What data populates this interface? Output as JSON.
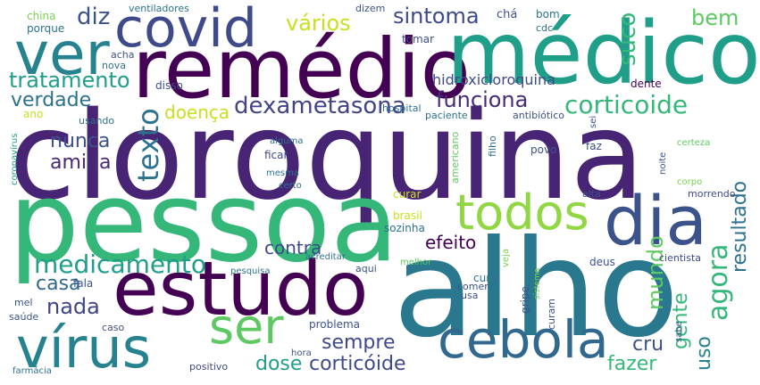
{
  "palette": {
    "dark_purple": "#440154",
    "indigo": "#3b528b",
    "blue": "#31688e",
    "teal": "#21918c",
    "green": "#35b779",
    "light_green": "#90d743",
    "yellow": "#c8e020",
    "background": "#ffffff"
  },
  "words": [
    {
      "text": "cloroquina",
      "color": "#482475"
    },
    {
      "text": "pessoa",
      "color": "#35b779"
    },
    {
      "text": "alho",
      "color": "#2a788e"
    },
    {
      "text": "remédio",
      "color": "#440154"
    },
    {
      "text": "médico",
      "color": "#1f9e89"
    },
    {
      "text": "ver",
      "color": "#26828e"
    },
    {
      "text": "covid",
      "color": "#3e4a89"
    },
    {
      "text": "estudo",
      "color": "#440154"
    },
    {
      "text": "dia",
      "color": "#3b528b"
    },
    {
      "text": "todos",
      "color": "#90d743"
    },
    {
      "text": "ser",
      "color": "#5ec962"
    },
    {
      "text": "vírus",
      "color": "#26828e"
    },
    {
      "text": "cebola",
      "color": "#31688e"
    },
    {
      "text": "medicamento",
      "color": "#1f9e89"
    },
    {
      "text": "dexametasona",
      "color": "#414487"
    },
    {
      "text": "corticoide",
      "color": "#35b779"
    },
    {
      "text": "funciona",
      "color": "#472c7a"
    },
    {
      "text": "sintoma",
      "color": "#3e4a89"
    },
    {
      "text": "tratamento",
      "color": "#1f9e89"
    },
    {
      "text": "texto",
      "color": "#2c728e"
    },
    {
      "text": "doença",
      "color": "#c8e020"
    },
    {
      "text": "nunca",
      "color": "#3b528b"
    },
    {
      "text": "amiga",
      "color": "#482878"
    },
    {
      "text": "verdade",
      "color": "#2c728e"
    },
    {
      "text": "diz",
      "color": "#3b528b"
    },
    {
      "text": "vários",
      "color": "#c8e020"
    },
    {
      "text": "suco",
      "color": "#35b779"
    },
    {
      "text": "bem",
      "color": "#5ec962"
    },
    {
      "text": "hidroxicloroquina",
      "color": "#3e4a89"
    },
    {
      "text": "nada",
      "color": "#414487"
    },
    {
      "text": "casa",
      "color": "#31688e"
    },
    {
      "text": "contra",
      "color": "#3e4a89"
    },
    {
      "text": "efeito",
      "color": "#440154"
    },
    {
      "text": "agora",
      "color": "#35b779"
    },
    {
      "text": "mundo",
      "color": "#5ec962"
    },
    {
      "text": "resultado",
      "color": "#2c728e"
    },
    {
      "text": "sempre",
      "color": "#3e4a89"
    },
    {
      "text": "dose",
      "color": "#1f9e89"
    },
    {
      "text": "corticóide",
      "color": "#3e4a89"
    },
    {
      "text": "fazer",
      "color": "#35b779"
    },
    {
      "text": "cru",
      "color": "#3b528b"
    },
    {
      "text": "gente",
      "color": "#35b779"
    },
    {
      "text": "uso",
      "color": "#26828e"
    },
    {
      "text": "china",
      "color": "#7ad151"
    },
    {
      "text": "porque",
      "color": "#2c728e"
    },
    {
      "text": "ventiladores",
      "color": "#2c728e"
    },
    {
      "text": "dizem",
      "color": "#3b528b"
    },
    {
      "text": "chá",
      "color": "#3b528b"
    },
    {
      "text": "bom",
      "color": "#2c728e"
    },
    {
      "text": "cdc",
      "color": "#2c728e"
    },
    {
      "text": "tomar",
      "color": "#3e4a89"
    },
    {
      "text": "acha",
      "color": "#3b528b"
    },
    {
      "text": "nova",
      "color": "#2c728e"
    },
    {
      "text": "disso",
      "color": "#3b528b"
    },
    {
      "text": "hospital",
      "color": "#2c728e"
    },
    {
      "text": "dente",
      "color": "#440154"
    },
    {
      "text": "paciente",
      "color": "#2c728e"
    },
    {
      "text": "antibiótico",
      "color": "#3b528b"
    },
    {
      "text": "ano",
      "color": "#c8e020"
    },
    {
      "text": "usando",
      "color": "#2c728e"
    },
    {
      "text": "coronavírus",
      "color": "#1f9e89"
    },
    {
      "text": "alguma",
      "color": "#2c728e"
    },
    {
      "text": "americano",
      "color": "#5ec962"
    },
    {
      "text": "filho",
      "color": "#2c728e"
    },
    {
      "text": "sei",
      "color": "#3b528b"
    },
    {
      "text": "povo",
      "color": "#3b528b"
    },
    {
      "text": "faz",
      "color": "#3e4a89"
    },
    {
      "text": "noite",
      "color": "#3b528b"
    },
    {
      "text": "certeza",
      "color": "#5ec962"
    },
    {
      "text": "corpo",
      "color": "#7ad151"
    },
    {
      "text": "ficar",
      "color": "#3e4a89"
    },
    {
      "text": "mesma",
      "color": "#2c728e"
    },
    {
      "text": "certo",
      "color": "#2c728e"
    },
    {
      "text": "curar",
      "color": "#c8e020"
    },
    {
      "text": "alta",
      "color": "#3b528b"
    },
    {
      "text": "morrendo",
      "color": "#3e4a89"
    },
    {
      "text": "brasil",
      "color": "#c8e020"
    },
    {
      "text": "sozinha",
      "color": "#2c728e"
    },
    {
      "text": "acreditar",
      "color": "#2c728e"
    },
    {
      "text": "aqui",
      "color": "#3b528b"
    },
    {
      "text": "melhor",
      "color": "#5ec962"
    },
    {
      "text": "pesquisa",
      "color": "#2c728e"
    },
    {
      "text": "fala",
      "color": "#3b528b"
    },
    {
      "text": "mel",
      "color": "#3b528b"
    },
    {
      "text": "saúde",
      "color": "#3b528b"
    },
    {
      "text": "caso",
      "color": "#3b528b"
    },
    {
      "text": "problema",
      "color": "#3b528b"
    },
    {
      "text": "positivo",
      "color": "#3e4a89"
    },
    {
      "text": "hora",
      "color": "#3b528b"
    },
    {
      "text": "farmácia",
      "color": "#2c728e"
    },
    {
      "text": "cura",
      "color": "#2c728e"
    },
    {
      "text": "comer",
      "color": "#3b528b"
    },
    {
      "text": "usa",
      "color": "#3b528b"
    },
    {
      "text": "gripe",
      "color": "#3b528b"
    },
    {
      "text": "curam",
      "color": "#3b528b"
    },
    {
      "text": "veja",
      "color": "#7ad151"
    },
    {
      "text": "sistema",
      "color": "#7ad151"
    },
    {
      "text": "deus",
      "color": "#3b528b"
    },
    {
      "text": "cientista",
      "color": "#3e4a89"
    },
    {
      "text": "sabe",
      "color": "#3b528b"
    }
  ]
}
